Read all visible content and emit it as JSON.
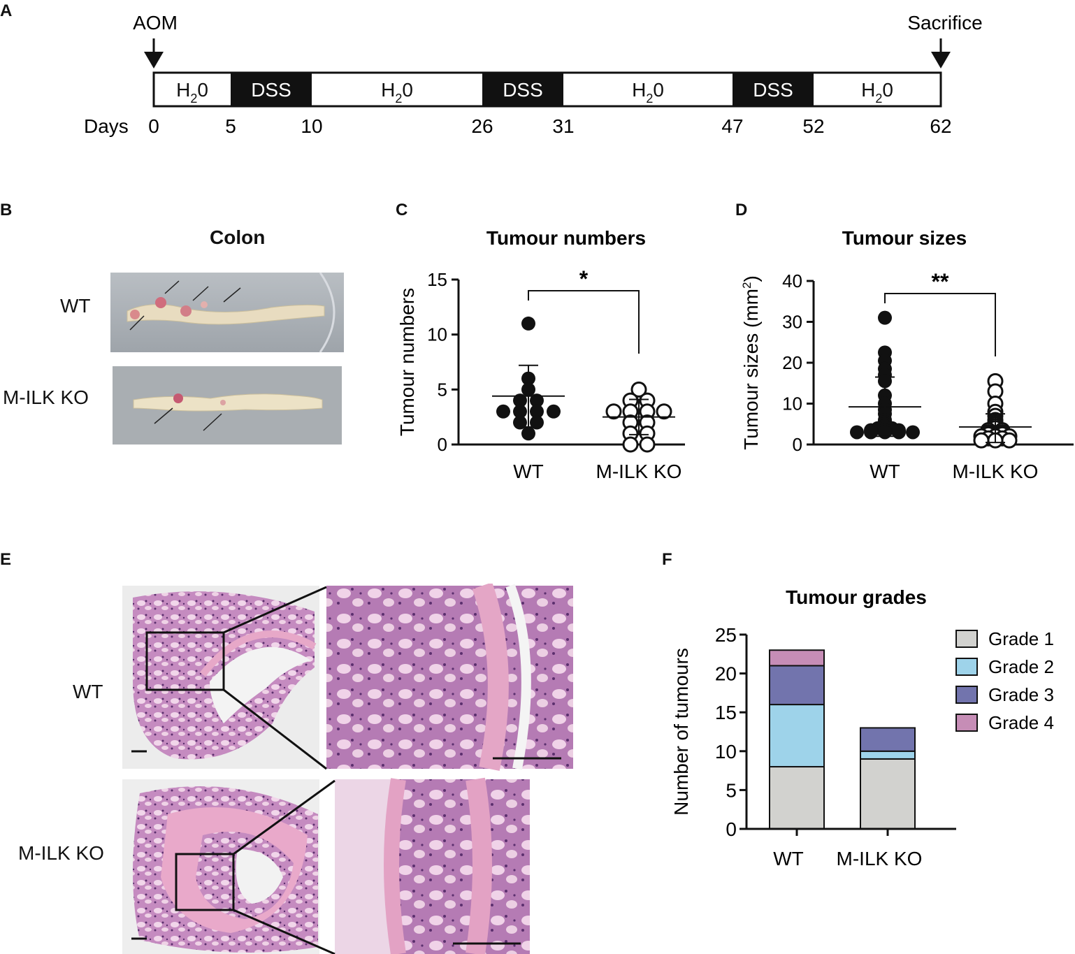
{
  "panels": {
    "a": "A",
    "b": "B",
    "c": "C",
    "d": "D",
    "e": "E",
    "f": "F"
  },
  "timeline": {
    "start_label": "AOM",
    "end_label": "Sacrifice",
    "days_label": "Days",
    "segments": [
      {
        "label": "H",
        "sub": "2",
        "tail": "0",
        "start": 0,
        "end": 5,
        "kind": "water"
      },
      {
        "label": "DSS",
        "sub": "",
        "tail": "",
        "start": 5,
        "end": 10,
        "kind": "dss"
      },
      {
        "label": "H",
        "sub": "2",
        "tail": "0",
        "start": 10,
        "end": 26,
        "kind": "water"
      },
      {
        "label": "DSS",
        "sub": "",
        "tail": "",
        "start": 26,
        "end": 31,
        "kind": "dss"
      },
      {
        "label": "H",
        "sub": "2",
        "tail": "0",
        "start": 31,
        "end": 47,
        "kind": "water"
      },
      {
        "label": "DSS",
        "sub": "",
        "tail": "",
        "start": 47,
        "end": 52,
        "kind": "dss"
      },
      {
        "label": "H",
        "sub": "2",
        "tail": "0",
        "start": 52,
        "end": 62,
        "kind": "water"
      }
    ],
    "day_ticks": [
      "0",
      "5",
      "10",
      "26",
      "31",
      "47",
      "52",
      "62"
    ]
  },
  "colon": {
    "title": "Colon",
    "rows": [
      "WT",
      "M-ILK KO"
    ]
  },
  "histology": {
    "rows": [
      "WT",
      "M-ILK KO"
    ]
  },
  "colors": {
    "grade1": "#d2d2cf",
    "grade2": "#9ed3ea",
    "grade3": "#7274ad",
    "grade4": "#c68db6",
    "he_pink": "#d99ac4",
    "he_purple": "#9b5f9e"
  },
  "chart_data": [
    {
      "type": "scatter",
      "title": "Tumour numbers",
      "ylabel": "Tumour numbers",
      "xlabel": "",
      "ylim": [
        0,
        15
      ],
      "yticks": [
        "0",
        "5",
        "10",
        "15"
      ],
      "categories": [
        "WT",
        "M-ILK KO"
      ],
      "series": [
        {
          "values": [
            11,
            6,
            5,
            4,
            4,
            3,
            3,
            3,
            3,
            2,
            2,
            1
          ],
          "mean": 4.4,
          "sd_low": 1.6,
          "sd_high": 7.2,
          "marker": "filled"
        },
        {
          "values": [
            5,
            4,
            4,
            3,
            3,
            3,
            3,
            2,
            2,
            1,
            1,
            0,
            0
          ],
          "mean": 2.5,
          "sd_low": 0.9,
          "sd_high": 4.1,
          "marker": "open"
        }
      ],
      "significance": "*"
    },
    {
      "type": "scatter",
      "title": "Tumour sizes",
      "ylabel": "Tumour sizes (mm",
      "ylabel_sup": "2",
      "ylabel_tail": ")",
      "xlabel": "",
      "ylim": [
        0,
        40
      ],
      "yticks": [
        "0",
        "10",
        "20",
        "30",
        "40"
      ],
      "categories": [
        "WT",
        "M-ILK KO"
      ],
      "series": [
        {
          "values": [
            31,
            22.5,
            20.5,
            18.5,
            17,
            15.5,
            12,
            10,
            8.5,
            7.5,
            6,
            5.5,
            5,
            4.5,
            4,
            4,
            3.5,
            3.5,
            3.5,
            3,
            3,
            3,
            3,
            3
          ],
          "mean": 9.2,
          "sd_low": 2.0,
          "sd_high": 16.5,
          "marker": "filled"
        },
        {
          "values": [
            15.5,
            13,
            10,
            8,
            7,
            6,
            5.5,
            5,
            4.5,
            4,
            3.5,
            3.5,
            3,
            3,
            2.5,
            2.5,
            2,
            2,
            2,
            1.5,
            1.5,
            1,
            1,
            1
          ],
          "mean": 4.3,
          "sd_low": 0.5,
          "sd_high": 7.5,
          "marker": "open"
        }
      ],
      "significance": "**"
    },
    {
      "type": "bar",
      "stacked": true,
      "title": "Tumour grades",
      "ylabel": "Number of tumours",
      "xlabel": "",
      "ylim": [
        0,
        25
      ],
      "yticks": [
        "0",
        "5",
        "10",
        "15",
        "20",
        "25"
      ],
      "categories": [
        "WT",
        "M-ILK KO"
      ],
      "series": [
        {
          "name": "Grade 1",
          "values": [
            8,
            9
          ]
        },
        {
          "name": "Grade 2",
          "values": [
            8,
            1
          ]
        },
        {
          "name": "Grade 3",
          "values": [
            5,
            3
          ]
        },
        {
          "name": "Grade 4",
          "values": [
            2,
            0
          ]
        }
      ],
      "legend": "right"
    }
  ]
}
